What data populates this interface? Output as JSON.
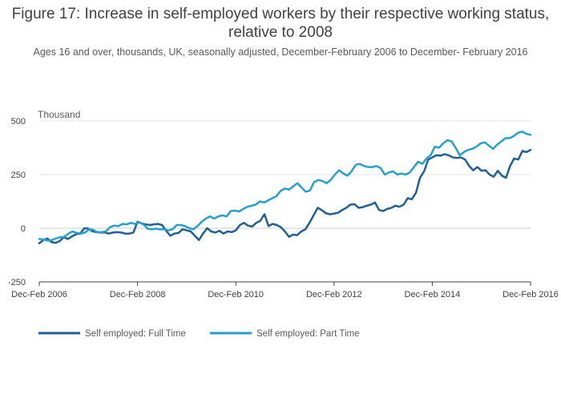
{
  "chart_data": {
    "type": "line",
    "title": "Figure 17: Increase in self-employed workers by their respective working status, relative to 2008",
    "subtitle": "Ages 16 and over, thousands, UK, seasonally adjusted, December-February 2006 to December- February 2016",
    "ylabel": "Thousand",
    "xlabel": "",
    "ylim": [
      -250,
      500
    ],
    "yticks": [
      -250,
      0,
      250,
      500
    ],
    "xticks": [
      "Dec-Feb 2006",
      "Dec-Feb 2008",
      "Dec-Feb 2010",
      "Dec-Feb 2012",
      "Dec-Feb 2014",
      "Dec-Feb 2016"
    ],
    "x_range": [
      2006,
      2016
    ],
    "grid": true,
    "legend": "bottom-left",
    "series": [
      {
        "name": "Self employed: Full Time",
        "color": "#206095",
        "x_start": 2006,
        "x_end": 2016,
        "values": [
          -70,
          -55,
          -48,
          -65,
          -68,
          -60,
          -42,
          -50,
          -38,
          -28,
          -25,
          0,
          -2,
          -15,
          -18,
          -20,
          -20,
          -25,
          -20,
          -18,
          -20,
          -25,
          -25,
          -20,
          30,
          22,
          18,
          15,
          18,
          20,
          15,
          -12,
          -35,
          -25,
          -22,
          -5,
          -10,
          -15,
          -35,
          -55,
          -25,
          0,
          -15,
          -20,
          -12,
          -25,
          -15,
          -18,
          -10,
          15,
          25,
          12,
          8,
          25,
          35,
          65,
          10,
          20,
          15,
          5,
          -15,
          -40,
          -30,
          -32,
          -15,
          -5,
          25,
          60,
          95,
          85,
          70,
          65,
          68,
          72,
          85,
          95,
          110,
          112,
          95,
          98,
          105,
          110,
          120,
          85,
          80,
          90,
          95,
          105,
          100,
          110,
          140,
          135,
          165,
          235,
          265,
          320,
          330,
          340,
          338,
          345,
          340,
          330,
          328,
          330,
          320,
          290,
          270,
          285,
          268,
          270,
          250,
          240,
          268,
          245,
          235,
          290,
          325,
          320,
          360,
          355,
          365
        ]
      },
      {
        "name": "Self employed: Part Time",
        "color": "#27a0cc",
        "x_start": 2006,
        "x_end": 2016,
        "values": [
          -50,
          -52,
          -58,
          -55,
          -48,
          -42,
          -40,
          -25,
          -15,
          -22,
          -25,
          -20,
          -5,
          -8,
          -18,
          -18,
          -15,
          5,
          12,
          10,
          20,
          18,
          25,
          20,
          28,
          18,
          -2,
          -5,
          -2,
          -5,
          -5,
          -10,
          -5,
          15,
          15,
          10,
          0,
          -5,
          10,
          30,
          45,
          55,
          45,
          55,
          60,
          55,
          80,
          82,
          78,
          90,
          100,
          105,
          110,
          125,
          120,
          130,
          140,
          150,
          175,
          185,
          180,
          195,
          210,
          190,
          170,
          175,
          215,
          225,
          220,
          210,
          225,
          250,
          270,
          255,
          245,
          265,
          295,
          300,
          290,
          285,
          285,
          290,
          280,
          250,
          260,
          265,
          250,
          255,
          250,
          260,
          285,
          310,
          300,
          325,
          340,
          380,
          375,
          395,
          410,
          405,
          375,
          340,
          355,
          365,
          370,
          380,
          395,
          400,
          385,
          370,
          390,
          405,
          420,
          420,
          430,
          445,
          450,
          440,
          435
        ]
      }
    ]
  }
}
